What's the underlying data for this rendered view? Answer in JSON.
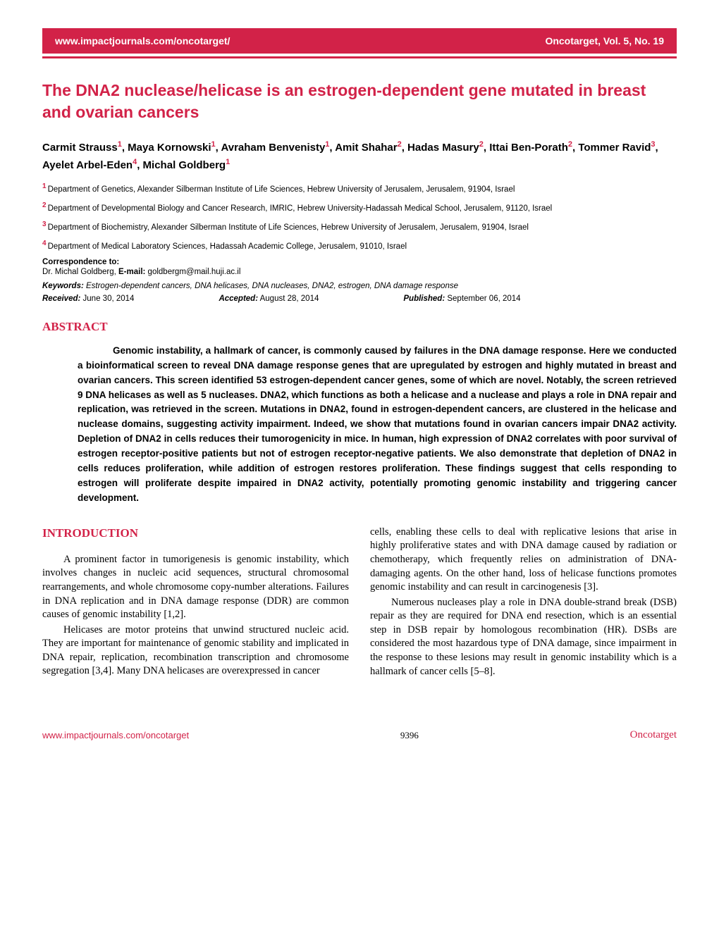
{
  "header": {
    "url": "www.impactjournals.com/oncotarget/",
    "journal": "Oncotarget, Vol. 5, No. 19"
  },
  "title": "The DNA2 nuclease/helicase is an estrogen-dependent gene mutated in breast and ovarian cancers",
  "affiliations": {
    "aff1": "Department of Genetics, Alexander Silberman Institute of Life Sciences, Hebrew University of Jerusalem, Jerusalem, 91904, Israel",
    "aff2": "Department of Developmental Biology and Cancer Research, IMRIC, Hebrew University-Hadassah Medical School, Jerusalem, 91120, Israel",
    "aff3": "Department of Biochemistry, Alexander Silberman Institute of Life Sciences, Hebrew University of Jerusalem, Jerusalem, 91904, Israel",
    "aff4": "Department of Medical Laboratory Sciences, Hadassah Academic College, Jerusalem, 91010, Israel"
  },
  "correspondence": {
    "label": "Correspondence to:",
    "text_prefix": "Dr. Michal Goldberg, ",
    "email_label": "E-mail:",
    "email": " goldbergm@mail.huji.ac.il"
  },
  "keywords": {
    "label": "Keywords:",
    "text": " Estrogen-dependent cancers, DNA helicases, DNA nucleases, DNA2, estrogen, DNA damage response"
  },
  "dates": {
    "received_label": "Received:",
    "received": " June 30, 2014",
    "accepted_label": "Accepted:",
    "accepted": " August 28, 2014",
    "published_label": "Published:",
    "published": " September 06, 2014"
  },
  "abstract": {
    "heading": "ABSTRACT",
    "text": "Genomic instability, a hallmark of cancer, is commonly caused by failures in the DNA damage response. Here we conducted a bioinformatical screen to reveal DNA damage response genes that are upregulated by estrogen and highly mutated in breast and ovarian cancers. This screen identified 53 estrogen-dependent cancer genes, some of which are novel. Notably, the screen retrieved 9 DNA helicases as well as 5 nucleases. DNA2, which functions as both a helicase and a nuclease and plays a role in DNA repair and replication, was retrieved in the screen. Mutations in DNA2, found in estrogen-dependent cancers, are clustered in the helicase and nuclease domains, suggesting activity impairment. Indeed, we show that mutations found in ovarian cancers impair DNA2 activity. Depletion of DNA2 in cells reduces their tumorogenicity in mice. In human, high expression of DNA2 correlates with poor survival of estrogen receptor-positive patients but not of estrogen receptor-negative patients. We also demonstrate that depletion of DNA2 in cells reduces proliferation, while addition of estrogen restores proliferation. These findings suggest that cells responding to estrogen will proliferate despite impaired in DNA2 activity, potentially promoting genomic instability and triggering cancer development."
  },
  "introduction": {
    "heading": "INTRODUCTION",
    "col1_p1": "A prominent factor in tumorigenesis is genomic instability, which involves changes in nucleic acid sequences, structural chromosomal rearrangements, and whole chromosome copy-number alterations. Failures in DNA replication and in DNA damage response (DDR) are common causes of genomic instability [1,2].",
    "col1_p2": "Helicases are motor proteins that unwind structured nucleic acid. They are important for maintenance of genomic stability and implicated in DNA repair, replication, recombination transcription and chromosome segregation [3,4]. Many DNA helicases are overexpressed in cancer",
    "col2_p1": "cells, enabling these cells to deal with replicative lesions that arise in highly proliferative states and with DNA damage caused by radiation or chemotherapy, which frequently relies on administration of DNA-damaging agents. On the other hand, loss of helicase functions promotes genomic instability and can result in carcinogenesis [3].",
    "col2_p2": "Numerous nucleases play a role in DNA double-strand break (DSB) repair as they are required for DNA end resection, which is an essential step in DSB repair by homologous recombination (HR). DSBs are considered the most hazardous type of DNA damage, since impairment in the response to these lesions may result in genomic instability which is a hallmark of cancer cells [5–8]."
  },
  "footer": {
    "url": "www.impactjournals.com/oncotarget",
    "page": "9396",
    "journal": "Oncotarget"
  }
}
